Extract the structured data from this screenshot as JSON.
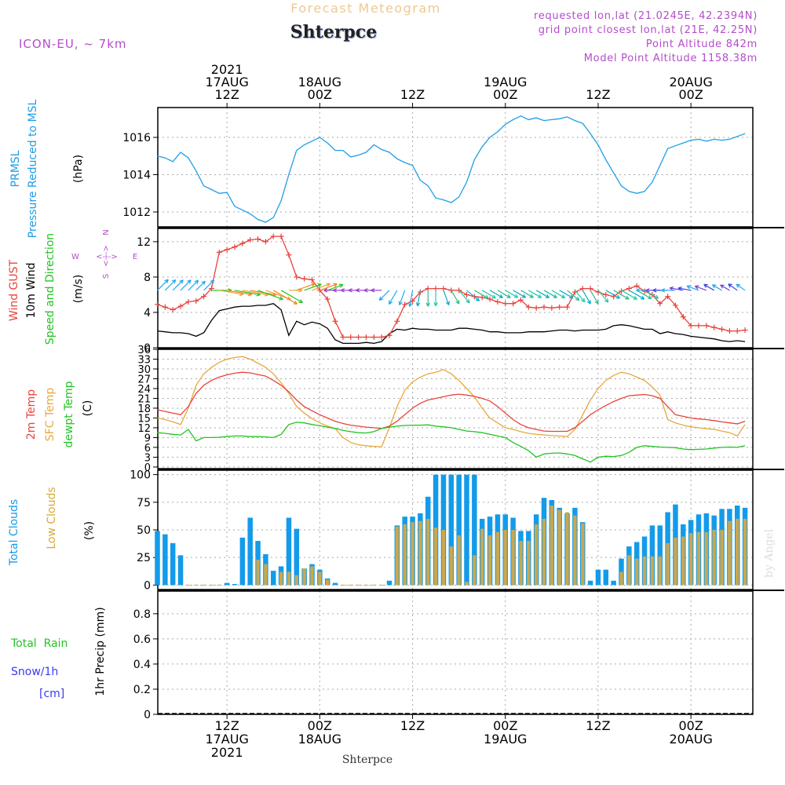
{
  "header": {
    "product": "Forecast Meteogram",
    "station": "Shterpce",
    "model": "ICON-EU, ~ 7km",
    "requested": "requested lon,lat (21.0245E, 42.2394N)",
    "grid_point": "grid point closest lon,lat (21E, 42.25N)",
    "point_altitude": "Point Altitude 842m",
    "model_altitude": "Model Point Altitude 1158.38m",
    "watermark": "by Angel",
    "footer_station": "Shterpce"
  },
  "time_axis": {
    "top_labels": [
      {
        "time": "2021-08-17T12",
        "lines": [
          "2021",
          "17AUG",
          "12Z"
        ]
      },
      {
        "time": "2021-08-18T00",
        "lines": [
          "18AUG",
          "00Z"
        ]
      },
      {
        "time": "2021-08-18T12",
        "lines": [
          "12Z"
        ]
      },
      {
        "time": "2021-08-19T00",
        "lines": [
          "19AUG",
          "00Z"
        ]
      },
      {
        "time": "2021-08-19T12",
        "lines": [
          "12Z"
        ]
      },
      {
        "time": "2021-08-20T00",
        "lines": [
          "20AUG",
          "00Z"
        ]
      }
    ],
    "bottom_labels": [
      {
        "time": "2021-08-17T12",
        "lines": [
          "12Z",
          "17AUG",
          "2021"
        ]
      },
      {
        "time": "2021-08-18T00",
        "lines": [
          "00Z",
          "18AUG"
        ]
      },
      {
        "time": "2021-08-18T12",
        "lines": [
          "12Z"
        ]
      },
      {
        "time": "2021-08-19T00",
        "lines": [
          "00Z",
          "19AUG"
        ]
      },
      {
        "time": "2021-08-19T12",
        "lines": [
          "12Z"
        ]
      },
      {
        "time": "2021-08-20T00",
        "lines": [
          "00Z",
          "20AUG"
        ]
      }
    ]
  },
  "panel_labels": {
    "pressure": {
      "name_lines": [
        "PRMSL",
        "Pressure Reduced to MSL"
      ],
      "unit": "(hPa)"
    },
    "wind": {
      "gust": "Wind GUST",
      "wind10": "10m Wind",
      "dir": "Speed and Direction",
      "unit": "(m/s)",
      "compass": {
        "n": "N",
        "s": "S",
        "w": "W",
        "e": "E",
        "arrow_ns": "<--->",
        "arrow_we": "<--->"
      }
    },
    "temp": {
      "t2m": "2m Temp",
      "sfc": "SFC Temp",
      "dewpt": "dewpt Temp",
      "unit": "(C)"
    },
    "clouds": {
      "total": "Total Clouds",
      "low": "Low Clouds",
      "unit": "(%)"
    },
    "precip": {
      "rain": "Total  Rain",
      "snow": "Snow/1h",
      "snow_unit": "[cm]",
      "name": "1hr Precip (mm)"
    }
  },
  "colors": {
    "pressure": "#1e9ee6",
    "gust": "#e8433c",
    "wind10": "#000000",
    "t2m": "#e8433c",
    "sfc": "#e8a83c",
    "dewpt": "#22c322",
    "total_clouds": "#139bea",
    "low_clouds": "#c8a850",
    "title": "#f0c890",
    "meta": "#b44ccc",
    "snow": "#3a3aee",
    "rain": "#22c322"
  },
  "chart_data": [
    {
      "type": "line",
      "panel": "pressure",
      "start_time": "2021-08-17T03",
      "x_unit": "hours from 17AUG 03Z",
      "ylim": [
        1011.2,
        1017.6
      ],
      "yticks": [
        1012,
        1014,
        1016
      ],
      "series": [
        {
          "name": "PRMSL",
          "values": [
            1015.0,
            1014.9,
            1014.7,
            1015.2,
            1014.9,
            1014.2,
            1013.4,
            1013.2,
            1013.0,
            1013.05,
            1012.3,
            1012.1,
            1011.9,
            1011.6,
            1011.45,
            1011.7,
            1012.6,
            1014.0,
            1015.3,
            1015.6,
            1015.8,
            1016.0,
            1015.7,
            1015.3,
            1015.3,
            1014.95,
            1015.05,
            1015.2,
            1015.6,
            1015.35,
            1015.2,
            1014.85,
            1014.65,
            1014.5,
            1013.7,
            1013.4,
            1012.75,
            1012.65,
            1012.5,
            1012.8,
            1013.6,
            1014.8,
            1015.5,
            1016.0,
            1016.3,
            1016.7,
            1016.95,
            1017.15,
            1016.95,
            1017.05,
            1016.9,
            1016.95,
            1017.0,
            1017.1,
            1016.9,
            1016.75,
            1016.2,
            1015.6,
            1014.8,
            1014.1,
            1013.4,
            1013.1,
            1013.0,
            1013.1,
            1013.6,
            1014.5,
            1015.4,
            1015.55,
            1015.7,
            1015.85,
            1015.9,
            1015.8,
            1015.9,
            1015.85,
            1015.9,
            1016.05,
            1016.2
          ]
        }
      ]
    },
    {
      "type": "line",
      "panel": "wind",
      "start_time": "2021-08-17T03",
      "x_unit": "hours from 17AUG 03Z",
      "ylim": [
        0,
        13.5
      ],
      "yticks": [
        0,
        4,
        8,
        12
      ],
      "series": [
        {
          "name": "Wind GUST",
          "values": [
            4.9,
            4.6,
            4.3,
            4.7,
            5.2,
            5.3,
            5.8,
            6.7,
            10.8,
            11.1,
            11.4,
            11.8,
            12.2,
            12.3,
            12.0,
            12.6,
            12.6,
            10.5,
            8.0,
            7.8,
            7.7,
            6.5,
            5.5,
            3.0,
            1.2,
            1.2,
            1.2,
            1.2,
            1.2,
            1.2,
            1.4,
            3.0,
            4.9,
            5.3,
            6.3,
            6.7,
            6.7,
            6.7,
            6.5,
            6.5,
            6.0,
            5.8,
            5.7,
            5.5,
            5.2,
            5.0,
            5.0,
            5.4,
            4.6,
            4.5,
            4.6,
            4.5,
            4.6,
            4.6,
            6.3,
            6.7,
            6.7,
            6.3,
            6.0,
            5.8,
            6.4,
            6.7,
            7.0,
            6.4,
            6.0,
            5.0,
            5.8,
            4.8,
            3.5,
            2.5,
            2.5,
            2.5,
            2.3,
            2.1,
            1.9,
            1.9,
            2.0
          ]
        },
        {
          "name": "10m Wind",
          "values": [
            1.9,
            1.8,
            1.7,
            1.7,
            1.6,
            1.3,
            1.7,
            3.1,
            4.2,
            4.4,
            4.6,
            4.7,
            4.7,
            4.8,
            4.8,
            5.0,
            4.3,
            1.4,
            3.0,
            2.6,
            2.9,
            2.7,
            2.2,
            0.9,
            0.5,
            0.5,
            0.5,
            0.6,
            0.5,
            0.7,
            1.6,
            2.1,
            2.0,
            2.2,
            2.1,
            2.1,
            2.0,
            2.0,
            2.0,
            2.2,
            2.2,
            2.1,
            2.0,
            1.8,
            1.8,
            1.7,
            1.7,
            1.7,
            1.8,
            1.8,
            1.8,
            1.9,
            2.0,
            2.0,
            1.9,
            2.0,
            2.0,
            2.0,
            2.1,
            2.5,
            2.6,
            2.5,
            2.3,
            2.1,
            2.1,
            1.6,
            1.8,
            1.6,
            1.5,
            1.3,
            1.2,
            1.1,
            1.0,
            0.8,
            0.7,
            0.8,
            0.7
          ]
        }
      ],
      "direction_from_deg": [
        225,
        225,
        225,
        225,
        225,
        225,
        225,
        270,
        280,
        280,
        280,
        280,
        280,
        290,
        290,
        300,
        300,
        270,
        250,
        250,
        250,
        250,
        250,
        90,
        90,
        90,
        90,
        90,
        90,
        90,
        45,
        30,
        20,
        10,
        10,
        0,
        0,
        340,
        330,
        320,
        310,
        300,
        300,
        300,
        300,
        300,
        300,
        300,
        300,
        300,
        300,
        300,
        300,
        310,
        320,
        330,
        330,
        320,
        300,
        300,
        300,
        300,
        300,
        300,
        90,
        90,
        90,
        90,
        100,
        100,
        110,
        110,
        120,
        120,
        120,
        125,
        125
      ]
    },
    {
      "type": "line",
      "panel": "temp",
      "start_time": "2021-08-17T03",
      "x_unit": "hours from 17AUG 03Z",
      "ylim": [
        -0.5,
        36
      ],
      "yticks": [
        0,
        3,
        6,
        9,
        12,
        15,
        18,
        21,
        24,
        27,
        30,
        33,
        36
      ],
      "series": [
        {
          "name": "2m Temp",
          "values": [
            17.5,
            17.0,
            16.5,
            16.0,
            18.5,
            22.5,
            25.0,
            26.5,
            27.5,
            28.2,
            28.7,
            29.0,
            28.8,
            28.3,
            27.8,
            26.5,
            25.0,
            23.0,
            20.5,
            18.5,
            17.2,
            16.0,
            15.0,
            14.0,
            13.3,
            12.8,
            12.5,
            12.2,
            12.0,
            11.8,
            12.5,
            14.0,
            16.0,
            18.0,
            19.5,
            20.5,
            21.0,
            21.5,
            22.0,
            22.3,
            22.0,
            21.6,
            21.0,
            20.2,
            18.5,
            16.5,
            14.5,
            13.0,
            12.0,
            11.5,
            11.0,
            10.9,
            10.9,
            10.9,
            12.0,
            14.0,
            16.0,
            17.5,
            18.8,
            20.0,
            21.0,
            21.8,
            22.0,
            22.2,
            21.8,
            21.0,
            18.5,
            16.0,
            15.5,
            15.0,
            14.7,
            14.5,
            14.2,
            13.8,
            13.5,
            13.2,
            14.0
          ]
        },
        {
          "name": "SFC Temp",
          "values": [
            15.0,
            14.5,
            13.8,
            13.0,
            18.0,
            25.0,
            28.5,
            30.5,
            32.0,
            33.0,
            33.5,
            33.8,
            33.0,
            31.8,
            30.5,
            28.5,
            25.8,
            22.5,
            18.5,
            16.5,
            14.8,
            13.5,
            12.5,
            11.8,
            9.0,
            7.5,
            6.8,
            6.5,
            6.3,
            6.2,
            12.0,
            18.5,
            23.5,
            26.0,
            27.5,
            28.5,
            29.0,
            29.8,
            28.5,
            26.5,
            24.0,
            21.5,
            18.0,
            15.0,
            13.5,
            12.0,
            11.5,
            10.8,
            10.3,
            10.0,
            9.8,
            9.6,
            9.5,
            9.3,
            11.5,
            16.0,
            20.5,
            24.0,
            26.5,
            28.0,
            29.0,
            28.5,
            27.5,
            26.5,
            24.5,
            22.0,
            14.5,
            13.5,
            12.8,
            12.3,
            12.0,
            11.7,
            11.5,
            11.0,
            10.5,
            9.5,
            13.0
          ]
        },
        {
          "name": "dewpt Temp",
          "values": [
            10.5,
            10.3,
            10.0,
            9.8,
            11.5,
            8.0,
            9.0,
            9.0,
            9.1,
            9.3,
            9.5,
            9.5,
            9.3,
            9.3,
            9.2,
            9.0,
            10.0,
            13.0,
            13.7,
            13.5,
            13.0,
            12.6,
            12.2,
            11.8,
            11.2,
            10.8,
            10.5,
            10.4,
            10.8,
            11.8,
            12.2,
            12.5,
            12.7,
            12.8,
            12.8,
            12.9,
            12.5,
            12.3,
            12.0,
            11.5,
            11.0,
            10.8,
            10.5,
            10.0,
            9.5,
            9.0,
            7.5,
            6.3,
            5.0,
            3.0,
            4.0,
            4.2,
            4.3,
            4.0,
            3.5,
            2.5,
            1.5,
            3.0,
            3.3,
            3.2,
            3.5,
            4.5,
            6.0,
            6.5,
            6.3,
            6.1,
            6.0,
            5.9,
            5.5,
            5.3,
            5.4,
            5.5,
            5.8,
            6.0,
            6.1,
            6.0,
            6.5
          ]
        }
      ]
    },
    {
      "type": "bar",
      "panel": "clouds",
      "start_time": "2021-08-17T03",
      "x_unit": "hours from 17AUG 03Z",
      "ylim": [
        -4,
        104
      ],
      "yticks": [
        0,
        25,
        50,
        75,
        100
      ],
      "series": [
        {
          "name": "Total Clouds",
          "values": [
            49,
            46,
            38,
            27,
            0,
            0,
            0,
            0,
            0,
            2,
            1,
            43,
            61,
            40,
            28,
            13,
            17,
            61,
            51,
            15,
            19,
            14,
            6,
            2,
            0,
            0,
            0,
            0,
            0,
            0,
            4,
            54,
            62,
            62,
            65,
            80,
            100,
            100,
            100,
            100,
            100,
            100,
            60,
            62,
            64,
            64,
            61,
            49,
            49,
            64,
            79,
            77,
            70,
            65,
            70,
            57,
            4,
            14,
            14,
            4,
            24,
            35,
            39,
            44,
            54,
            54,
            66,
            73,
            55,
            59,
            64,
            65,
            63,
            69,
            69,
            72,
            70
          ]
        },
        {
          "name": "Low Clouds",
          "values": [
            0,
            0,
            0,
            0,
            0,
            0,
            0,
            0,
            0,
            0,
            0,
            0,
            0,
            23,
            19,
            0,
            12,
            12,
            9,
            15,
            17,
            12,
            5,
            0,
            0,
            0,
            0,
            0,
            0,
            0,
            0,
            53,
            55,
            57,
            58,
            60,
            52,
            50,
            35,
            45,
            3,
            27,
            51,
            45,
            48,
            50,
            50,
            40,
            40,
            55,
            60,
            72,
            68,
            66,
            63,
            56,
            0,
            0,
            0,
            0,
            12,
            27,
            24,
            26,
            26,
            26,
            38,
            43,
            44,
            47,
            48,
            48,
            50,
            50,
            58,
            60,
            60
          ]
        }
      ]
    },
    {
      "type": "bar",
      "panel": "precip",
      "start_time": "2021-08-17T03",
      "x_unit": "hours from 17AUG 03Z",
      "ylim": [
        0,
        0.98
      ],
      "yticks": [
        0,
        0.2,
        0.4,
        0.6,
        0.8
      ],
      "series": [
        {
          "name": "1hr Precip (mm)",
          "values": []
        }
      ]
    }
  ]
}
